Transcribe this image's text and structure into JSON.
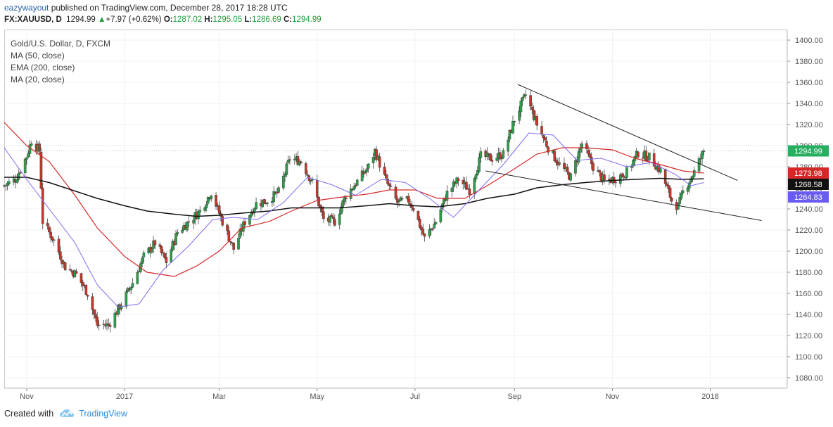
{
  "header": {
    "author": "eazywayout",
    "published": " published on TradingView.com, December 28, 2017 18:28 UTC",
    "symbol": "FX:XAUUSD, D",
    "last": "1294.99",
    "change_arrow": "▲",
    "change": "+7.97 (+0.62%)",
    "o_label": "O:",
    "o": "1287.02",
    "h_label": "H:",
    "h": "1295.05",
    "l_label": "L:",
    "l": "1286.69",
    "c_label": "C:",
    "c": "1294.99"
  },
  "legend": {
    "title": "Gold/U.S. Dollar, D, FXCM",
    "ma50": "MA (50, close)",
    "ema200": "EMA (200, close)",
    "ma20": "MA (20, close)"
  },
  "footer": {
    "created_with": "Created with",
    "brand": "TradingView",
    "brand_icon": "cloud-logo-icon"
  },
  "colors": {
    "up": "#2e9e4a",
    "down": "#c0392b",
    "ma50": "#d62728",
    "ema200": "#111111",
    "ma20": "#7e6cf0"
  },
  "chart_data": {
    "type": "candlestick",
    "title": "Gold/U.S. Dollar, D, FXCM",
    "ylim": [
      1070,
      1410
    ],
    "y_ticks": [
      1080,
      1100,
      1120,
      1140,
      1160,
      1180,
      1200,
      1220,
      1240,
      1260,
      1280,
      1300,
      1320,
      1340,
      1360,
      1380,
      1400
    ],
    "x_range": [
      "2016-10-18",
      "2018-02-18"
    ],
    "x_ticks": [
      {
        "date": "2016-11-01",
        "label": "Nov"
      },
      {
        "date": "2017-01-01",
        "label": "2017"
      },
      {
        "date": "2017-03-01",
        "label": "Mar"
      },
      {
        "date": "2017-05-01",
        "label": "May"
      },
      {
        "date": "2017-07-01",
        "label": "Jul"
      },
      {
        "date": "2017-09-01",
        "label": "Sep"
      },
      {
        "date": "2017-11-01",
        "label": "Nov"
      },
      {
        "date": "2018-01-01",
        "label": "2018"
      }
    ],
    "price_path": [
      [
        "2016-10-18",
        1262
      ],
      [
        "2016-10-25",
        1268
      ],
      [
        "2016-11-01",
        1290
      ],
      [
        "2016-11-04",
        1305
      ],
      [
        "2016-11-09",
        1295
      ],
      [
        "2016-11-11",
        1228
      ],
      [
        "2016-11-18",
        1210
      ],
      [
        "2016-11-25",
        1185
      ],
      [
        "2016-12-02",
        1178
      ],
      [
        "2016-12-09",
        1160
      ],
      [
        "2016-12-15",
        1130
      ],
      [
        "2016-12-22",
        1130
      ],
      [
        "2016-12-30",
        1150
      ],
      [
        "2017-01-06",
        1170
      ],
      [
        "2017-01-13",
        1195
      ],
      [
        "2017-01-20",
        1208
      ],
      [
        "2017-01-27",
        1190
      ],
      [
        "2017-02-03",
        1218
      ],
      [
        "2017-02-10",
        1228
      ],
      [
        "2017-02-17",
        1238
      ],
      [
        "2017-02-24",
        1256
      ],
      [
        "2017-03-03",
        1228
      ],
      [
        "2017-03-10",
        1202
      ],
      [
        "2017-03-17",
        1228
      ],
      [
        "2017-03-24",
        1245
      ],
      [
        "2017-03-31",
        1248
      ],
      [
        "2017-04-07",
        1256
      ],
      [
        "2017-04-14",
        1288
      ],
      [
        "2017-04-21",
        1285
      ],
      [
        "2017-04-28",
        1265
      ],
      [
        "2017-05-05",
        1230
      ],
      [
        "2017-05-12",
        1228
      ],
      [
        "2017-05-19",
        1253
      ],
      [
        "2017-05-26",
        1266
      ],
      [
        "2017-06-02",
        1280
      ],
      [
        "2017-06-06",
        1295
      ],
      [
        "2017-06-13",
        1266
      ],
      [
        "2017-06-20",
        1246
      ],
      [
        "2017-06-27",
        1248
      ],
      [
        "2017-06-30",
        1241
      ],
      [
        "2017-07-07",
        1212
      ],
      [
        "2017-07-14",
        1228
      ],
      [
        "2017-07-21",
        1255
      ],
      [
        "2017-07-28",
        1268
      ],
      [
        "2017-08-04",
        1258
      ],
      [
        "2017-08-11",
        1290
      ],
      [
        "2017-08-18",
        1288
      ],
      [
        "2017-08-25",
        1292
      ],
      [
        "2017-09-01",
        1325
      ],
      [
        "2017-09-08",
        1348
      ],
      [
        "2017-09-15",
        1320
      ],
      [
        "2017-09-22",
        1298
      ],
      [
        "2017-09-29",
        1282
      ],
      [
        "2017-10-06",
        1270
      ],
      [
        "2017-10-13",
        1302
      ],
      [
        "2017-10-20",
        1280
      ],
      [
        "2017-10-27",
        1266
      ],
      [
        "2017-11-03",
        1269
      ],
      [
        "2017-11-10",
        1275
      ],
      [
        "2017-11-17",
        1293
      ],
      [
        "2017-11-24",
        1289
      ],
      [
        "2017-12-01",
        1276
      ],
      [
        "2017-12-08",
        1248
      ],
      [
        "2017-12-12",
        1242
      ],
      [
        "2017-12-15",
        1256
      ],
      [
        "2017-12-22",
        1275
      ],
      [
        "2017-12-28",
        1295
      ]
    ],
    "series": [
      {
        "name": "MA (50, close)",
        "values": [
          [
            "2016-10-18",
            1322
          ],
          [
            "2016-11-01",
            1300
          ],
          [
            "2016-11-15",
            1285
          ],
          [
            "2016-12-01",
            1253
          ],
          [
            "2016-12-15",
            1222
          ],
          [
            "2017-01-01",
            1195
          ],
          [
            "2017-01-15",
            1180
          ],
          [
            "2017-02-01",
            1176
          ],
          [
            "2017-02-15",
            1186
          ],
          [
            "2017-03-01",
            1200
          ],
          [
            "2017-03-15",
            1222
          ],
          [
            "2017-04-01",
            1228
          ],
          [
            "2017-04-15",
            1238
          ],
          [
            "2017-05-01",
            1248
          ],
          [
            "2017-05-15",
            1251
          ],
          [
            "2017-06-01",
            1254
          ],
          [
            "2017-06-15",
            1258
          ],
          [
            "2017-07-01",
            1258
          ],
          [
            "2017-07-15",
            1250
          ],
          [
            "2017-08-01",
            1250
          ],
          [
            "2017-08-15",
            1262
          ],
          [
            "2017-09-01",
            1278
          ],
          [
            "2017-09-15",
            1292
          ],
          [
            "2017-10-01",
            1298
          ],
          [
            "2017-10-15",
            1298
          ],
          [
            "2017-11-01",
            1296
          ],
          [
            "2017-11-15",
            1288
          ],
          [
            "2017-12-01",
            1282
          ],
          [
            "2017-12-15",
            1276
          ],
          [
            "2017-12-28",
            1274
          ]
        ]
      },
      {
        "name": "EMA (200, close)",
        "values": [
          [
            "2016-10-18",
            1270
          ],
          [
            "2016-11-01",
            1270
          ],
          [
            "2016-11-15",
            1265
          ],
          [
            "2016-12-01",
            1257
          ],
          [
            "2016-12-15",
            1250
          ],
          [
            "2017-01-01",
            1243
          ],
          [
            "2017-01-15",
            1238
          ],
          [
            "2017-02-01",
            1235
          ],
          [
            "2017-02-15",
            1233
          ],
          [
            "2017-03-01",
            1234
          ],
          [
            "2017-03-15",
            1236
          ],
          [
            "2017-04-01",
            1238
          ],
          [
            "2017-04-15",
            1241
          ],
          [
            "2017-05-01",
            1241
          ],
          [
            "2017-05-15",
            1241
          ],
          [
            "2017-06-01",
            1243
          ],
          [
            "2017-06-15",
            1245
          ],
          [
            "2017-07-01",
            1243
          ],
          [
            "2017-07-15",
            1242
          ],
          [
            "2017-08-01",
            1245
          ],
          [
            "2017-08-15",
            1250
          ],
          [
            "2017-09-01",
            1254
          ],
          [
            "2017-09-15",
            1260
          ],
          [
            "2017-10-01",
            1263
          ],
          [
            "2017-10-15",
            1265
          ],
          [
            "2017-11-01",
            1267
          ],
          [
            "2017-11-15",
            1268
          ],
          [
            "2017-12-01",
            1269
          ],
          [
            "2017-12-15",
            1268
          ],
          [
            "2017-12-28",
            1268.6
          ]
        ]
      },
      {
        "name": "MA (20, close)",
        "values": [
          [
            "2016-10-18",
            1298
          ],
          [
            "2016-11-01",
            1268
          ],
          [
            "2016-11-15",
            1240
          ],
          [
            "2016-12-01",
            1208
          ],
          [
            "2016-12-15",
            1168
          ],
          [
            "2016-12-28",
            1147
          ],
          [
            "2017-01-10",
            1150
          ],
          [
            "2017-01-25",
            1182
          ],
          [
            "2017-02-10",
            1205
          ],
          [
            "2017-02-25",
            1230
          ],
          [
            "2017-03-10",
            1232
          ],
          [
            "2017-03-25",
            1230
          ],
          [
            "2017-04-10",
            1246
          ],
          [
            "2017-04-25",
            1270
          ],
          [
            "2017-05-10",
            1263
          ],
          [
            "2017-05-25",
            1253
          ],
          [
            "2017-06-10",
            1268
          ],
          [
            "2017-06-25",
            1265
          ],
          [
            "2017-07-10",
            1250
          ],
          [
            "2017-07-25",
            1232
          ],
          [
            "2017-08-10",
            1258
          ],
          [
            "2017-08-25",
            1282
          ],
          [
            "2017-09-10",
            1312
          ],
          [
            "2017-09-25",
            1310
          ],
          [
            "2017-10-10",
            1286
          ],
          [
            "2017-10-25",
            1288
          ],
          [
            "2017-11-10",
            1280
          ],
          [
            "2017-11-25",
            1284
          ],
          [
            "2017-12-10",
            1273
          ],
          [
            "2017-12-20",
            1262
          ],
          [
            "2017-12-28",
            1265
          ]
        ]
      }
    ],
    "trendlines": [
      {
        "from": [
          "2017-09-03",
          1358
        ],
        "to": [
          "2018-01-18",
          1267
        ]
      },
      {
        "from": [
          "2017-08-14",
          1276
        ],
        "to": [
          "2018-02-02",
          1229
        ]
      }
    ],
    "price_labels": [
      {
        "value": 1294.99,
        "text": "1294.99",
        "color": "#27ae60"
      },
      {
        "value": 1273.98,
        "text": "1273.98",
        "color": "#d62728"
      },
      {
        "value": 1268.58,
        "text": "1268.58",
        "color": "#111111"
      },
      {
        "value": 1264.83,
        "text": "1264.83",
        "color": "#6a5cf0"
      }
    ]
  }
}
